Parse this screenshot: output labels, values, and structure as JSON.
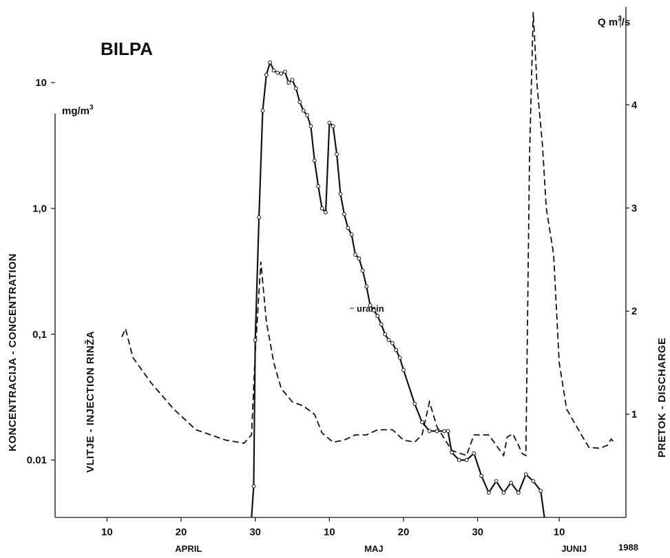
{
  "chart_data": {
    "type": "line",
    "title": "BILPA",
    "left_axis": {
      "label": "KONCENTRACIJA - CONCENTRATION",
      "unit": "mg/m",
      "unit_sup": "3",
      "scale": "log",
      "ticks": [
        {
          "v": 0.01,
          "label": "0.01"
        },
        {
          "v": 0.1,
          "label": "0,1"
        },
        {
          "v": 1,
          "label": "1,0"
        },
        {
          "v": 10,
          "label": "10"
        }
      ],
      "ylim": [
        0.0035,
        40
      ]
    },
    "right_axis": {
      "label": "PRETOK - DISCHARGE",
      "unit": "Q  m",
      "unit_sup": "3",
      "unit_tail": "/s",
      "scale": "linear",
      "ticks": [
        {
          "v": 1,
          "label": "1"
        },
        {
          "v": 2,
          "label": "2"
        },
        {
          "v": 3,
          "label": "3"
        },
        {
          "v": 4,
          "label": "4"
        }
      ],
      "ylim": [
        0,
        4.95
      ]
    },
    "x_axis": {
      "ticks": [
        {
          "date": "1988-04-10",
          "label": "10"
        },
        {
          "date": "1988-04-20",
          "label": "20"
        },
        {
          "date": "1988-04-30",
          "label": "30"
        },
        {
          "date": "1988-05-10",
          "label": "10"
        },
        {
          "date": "1988-05-20",
          "label": "20"
        },
        {
          "date": "1988-05-30",
          "label": "30"
        },
        {
          "date": "1988-06-10",
          "label": "10"
        }
      ],
      "months": [
        {
          "date": "1988-04-21",
          "label": "APRIL"
        },
        {
          "date": "1988-05-16",
          "label": "MAJ"
        },
        {
          "date": "1988-06-12",
          "label": "JUNIJ"
        }
      ],
      "year": "1988",
      "xlim": [
        "1988-04-03",
        "1988-06-19"
      ]
    },
    "annotations": {
      "injection": "VLITJE - INJECTION  RINŽA",
      "series_label": "uranin"
    },
    "series": [
      {
        "name": "uranin",
        "axis": "left",
        "style": "solid-with-markers",
        "points": [
          [
            "1988-04-29T12:00",
            0.0035
          ],
          [
            "1988-04-29T19:00",
            0.0062
          ],
          [
            "1988-04-30T00:00",
            0.09
          ],
          [
            "1988-04-30T12:00",
            0.85
          ],
          [
            "1988-05-01T00:00",
            6.0
          ],
          [
            "1988-05-01T12:00",
            11.5
          ],
          [
            "1988-05-02T00:00",
            14.5
          ],
          [
            "1988-05-02T12:00",
            12.5
          ],
          [
            "1988-05-03T00:00",
            12.0
          ],
          [
            "1988-05-03T12:00",
            11.8
          ],
          [
            "1988-05-04T00:00",
            12.2
          ],
          [
            "1988-05-04T12:00",
            10.0
          ],
          [
            "1988-05-05T00:00",
            10.5
          ],
          [
            "1988-05-05T12:00",
            9.0
          ],
          [
            "1988-05-06T00:00",
            7.0
          ],
          [
            "1988-05-06T12:00",
            6.0
          ],
          [
            "1988-05-07T00:00",
            5.5
          ],
          [
            "1988-05-07T12:00",
            4.5
          ],
          [
            "1988-05-08T00:00",
            2.4
          ],
          [
            "1988-05-08T12:00",
            1.5
          ],
          [
            "1988-05-09T00:00",
            1.0
          ],
          [
            "1988-05-09T12:00",
            0.93
          ],
          [
            "1988-05-10T00:00",
            4.8
          ],
          [
            "1988-05-10T12:00",
            4.5
          ],
          [
            "1988-05-11T00:00",
            2.7
          ],
          [
            "1988-05-11T12:00",
            1.3
          ],
          [
            "1988-05-12T00:00",
            0.9
          ],
          [
            "1988-05-12T12:00",
            0.7
          ],
          [
            "1988-05-13T00:00",
            0.62
          ],
          [
            "1988-05-13T12:00",
            0.43
          ],
          [
            "1988-05-14T00:00",
            0.4
          ],
          [
            "1988-05-14T12:00",
            0.32
          ],
          [
            "1988-05-15T00:00",
            0.24
          ],
          [
            "1988-05-15T12:00",
            0.17
          ],
          [
            "1988-05-16T00:00",
            0.155
          ],
          [
            "1988-05-16T12:00",
            0.14
          ],
          [
            "1988-05-17T00:00",
            0.12
          ],
          [
            "1988-05-17T12:00",
            0.1
          ],
          [
            "1988-05-18T00:00",
            0.09
          ],
          [
            "1988-05-18T12:00",
            0.085
          ],
          [
            "1988-05-19T00:00",
            0.075
          ],
          [
            "1988-05-19T12:00",
            0.065
          ],
          [
            "1988-05-20T00:00",
            0.052
          ],
          [
            "1988-05-21T12:00",
            0.028
          ],
          [
            "1988-05-22T12:00",
            0.02
          ],
          [
            "1988-05-23T12:00",
            0.017
          ],
          [
            "1988-05-24T12:00",
            0.017
          ],
          [
            "1988-05-25T12:00",
            0.017
          ],
          [
            "1988-05-26T00:00",
            0.017
          ],
          [
            "1988-05-26T12:00",
            0.0115
          ],
          [
            "1988-05-27T12:00",
            0.01
          ],
          [
            "1988-05-28T12:00",
            0.01
          ],
          [
            "1988-05-29T12:00",
            0.0113
          ],
          [
            "1988-05-30T12:00",
            0.0075
          ],
          [
            "1988-05-31T12:00",
            0.0055
          ],
          [
            "1988-06-01T12:00",
            0.0068
          ],
          [
            "1988-06-02T12:00",
            0.0055
          ],
          [
            "1988-06-03T12:00",
            0.0066
          ],
          [
            "1988-06-04T12:00",
            0.0055
          ],
          [
            "1988-06-05T12:00",
            0.0077
          ],
          [
            "1988-06-06T12:00",
            0.0068
          ],
          [
            "1988-06-07T12:00",
            0.0057
          ],
          [
            "1988-06-08T00:00",
            0.0035
          ]
        ]
      },
      {
        "name": "Q",
        "axis": "right",
        "style": "dashed",
        "points": [
          [
            "1988-04-12T00:00",
            1.75
          ],
          [
            "1988-04-12T12:00",
            1.83
          ],
          [
            "1988-04-13T12:00",
            1.55
          ],
          [
            "1988-04-16T00:00",
            1.3
          ],
          [
            "1988-04-19T00:00",
            1.05
          ],
          [
            "1988-04-22T00:00",
            0.85
          ],
          [
            "1988-04-26T00:00",
            0.75
          ],
          [
            "1988-04-28T12:00",
            0.72
          ],
          [
            "1988-04-29T12:00",
            0.8
          ],
          [
            "1988-04-30T00:00",
            1.6
          ],
          [
            "1988-04-30T18:00",
            2.48
          ],
          [
            "1988-05-01T12:00",
            1.9
          ],
          [
            "1988-05-02T12:00",
            1.5
          ],
          [
            "1988-05-03T12:00",
            1.25
          ],
          [
            "1988-05-05T00:00",
            1.12
          ],
          [
            "1988-05-06T12:00",
            1.08
          ],
          [
            "1988-05-08T00:00",
            1.0
          ],
          [
            "1988-05-09T00:00",
            0.82
          ],
          [
            "1988-05-10T12:00",
            0.73
          ],
          [
            "1988-05-12T00:00",
            0.75
          ],
          [
            "1988-05-13T12:00",
            0.8
          ],
          [
            "1988-05-15T00:00",
            0.8
          ],
          [
            "1988-05-16T12:00",
            0.85
          ],
          [
            "1988-05-18T12:00",
            0.85
          ],
          [
            "1988-05-20T00:00",
            0.75
          ],
          [
            "1988-05-21T12:00",
            0.73
          ],
          [
            "1988-05-22T12:00",
            0.8
          ],
          [
            "1988-05-23T12:00",
            1.12
          ],
          [
            "1988-05-24T12:00",
            0.88
          ],
          [
            "1988-05-26T12:00",
            0.65
          ],
          [
            "1988-05-28T12:00",
            0.6
          ],
          [
            "1988-05-29T12:00",
            0.8
          ],
          [
            "1988-05-31T12:00",
            0.8
          ],
          [
            "1988-06-01T12:00",
            0.7
          ],
          [
            "1988-06-02T12:00",
            0.6
          ],
          [
            "1988-06-03T00:00",
            0.78
          ],
          [
            "1988-06-03T18:00",
            0.81
          ],
          [
            "1988-06-04T12:00",
            0.7
          ],
          [
            "1988-06-05T00:00",
            0.62
          ],
          [
            "1988-06-05T12:00",
            0.6
          ],
          [
            "1988-06-06T00:00",
            3.5
          ],
          [
            "1988-06-06T12:00",
            4.9
          ],
          [
            "1988-06-07T00:00",
            4.2
          ],
          [
            "1988-06-07T18:00",
            3.6
          ],
          [
            "1988-06-08T06:00",
            3.0
          ],
          [
            "1988-06-09T06:00",
            2.55
          ],
          [
            "1988-06-10T00:00",
            1.5
          ],
          [
            "1988-06-11T00:00",
            1.05
          ],
          [
            "1988-06-13T00:00",
            0.8
          ],
          [
            "1988-06-14T00:00",
            0.68
          ],
          [
            "1988-06-15T12:00",
            0.67
          ],
          [
            "1988-06-16T12:00",
            0.7
          ],
          [
            "1988-06-17T00:00",
            0.76
          ],
          [
            "1988-06-17T12:00",
            0.72
          ]
        ]
      }
    ]
  }
}
